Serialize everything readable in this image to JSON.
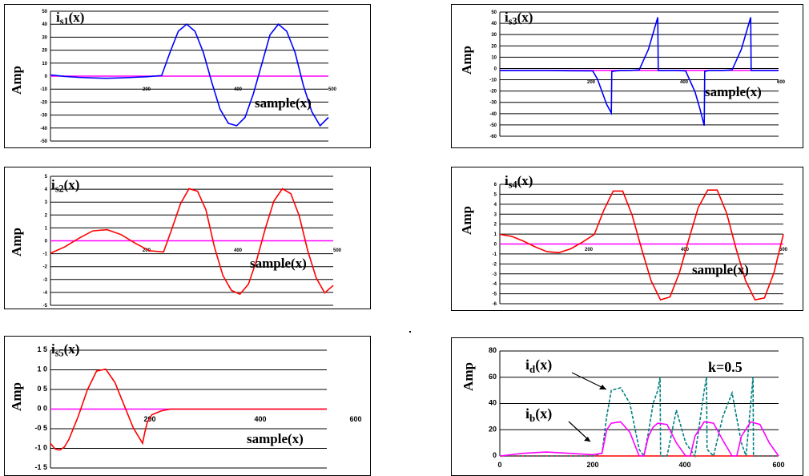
{
  "chart_data": [
    {
      "id": "is1",
      "type": "line",
      "title_main": "i",
      "title_sub": "s1",
      "title_tail": "(x)",
      "ylabel": "Amp",
      "xlabel": "sample(x)",
      "x_ticks": [
        "200",
        "400",
        "500"
      ],
      "y_ticks": [
        "50",
        "40",
        "30",
        "20",
        "10",
        "0",
        "-10",
        "-20",
        "-30",
        "-40",
        "-50"
      ],
      "ylim": [
        -55,
        55
      ],
      "xlim": [
        0,
        500
      ],
      "series": [
        {
          "color": "#0000ff",
          "x": [
            0,
            25,
            50,
            75,
            100,
            125,
            150,
            175,
            200,
            215,
            230,
            245,
            260,
            275,
            290,
            305,
            320,
            335,
            350,
            365,
            380,
            395,
            410,
            425,
            440,
            455,
            470,
            485,
            500
          ],
          "y": [
            1,
            -0.2,
            -1,
            -1.5,
            -1.8,
            -1.5,
            -1,
            -0.5,
            0.5,
            20,
            38,
            44,
            38,
            20,
            -5,
            -28,
            -40,
            -42,
            -35,
            -15,
            10,
            35,
            44,
            38,
            20,
            -8,
            -30,
            -42,
            -35
          ]
        }
      ]
    },
    {
      "id": "is3",
      "type": "line",
      "title_main": "i",
      "title_sub": "s3",
      "title_tail": "(x)",
      "ylabel": "Amp",
      "xlabel": "sample(x)",
      "x_ticks": [
        "200",
        "400",
        "600"
      ],
      "y_ticks": [
        "50",
        "40",
        "30",
        "20",
        "10",
        "0",
        "-10",
        "-20",
        "-30",
        "-40",
        "-50",
        "-60"
      ],
      "ylim": [
        -62,
        55
      ],
      "xlim": [
        0,
        600
      ],
      "series": [
        {
          "color": "#0000ff",
          "x": [
            0,
            50,
            100,
            150,
            200,
            210,
            220,
            230,
            240,
            241,
            250,
            260,
            280,
            300,
            320,
            330,
            340,
            341,
            350,
            380,
            400,
            420,
            430,
            440,
            441,
            450,
            480,
            500,
            520,
            540,
            541,
            560,
            600
          ],
          "y": [
            0,
            0,
            0,
            -0.3,
            -0.5,
            -8,
            -20,
            -32,
            -40,
            -1,
            -0.5,
            -0.2,
            0,
            0.5,
            20,
            35,
            50,
            0,
            0,
            0,
            -0.5,
            -20,
            -35,
            -52,
            -1,
            0,
            0,
            0.5,
            20,
            50,
            0,
            0,
            0
          ]
        }
      ]
    },
    {
      "id": "is2",
      "type": "line",
      "title_main": "i",
      "title_sub": "s2",
      "title_tail": "(x)",
      "ylabel": "Amp",
      "xlabel": "sample(x)",
      "x_ticks": [
        "200",
        "400",
        "500"
      ],
      "y_ticks": [
        "5",
        "4",
        "3",
        "2",
        "1",
        "0",
        "-1",
        "-2",
        "-3",
        "-4",
        "-5"
      ],
      "ylim": [
        -5.2,
        5.2
      ],
      "xlim": [
        0,
        500
      ],
      "series": [
        {
          "color": "#ff0000",
          "x": [
            0,
            25,
            50,
            75,
            100,
            125,
            150,
            175,
            200,
            215,
            230,
            245,
            260,
            275,
            290,
            305,
            320,
            335,
            350,
            365,
            380,
            395,
            410,
            425,
            440,
            455,
            470,
            485,
            500
          ],
          "y": [
            -1,
            -0.5,
            0.2,
            0.8,
            0.9,
            0.5,
            -0.2,
            -0.8,
            -0.9,
            1,
            3,
            4.2,
            4,
            2.5,
            -0.5,
            -2.8,
            -4,
            -4.3,
            -3.5,
            -1.5,
            1,
            3.2,
            4.2,
            3.8,
            2,
            -0.8,
            -3,
            -4.2,
            -3.6
          ]
        }
      ]
    },
    {
      "id": "is4",
      "type": "line",
      "title_main": "i",
      "title_sub": "s4",
      "title_tail": "(x)",
      "ylabel": "Amp",
      "xlabel": "sample(x)",
      "x_ticks": [
        "200",
        "400",
        "600"
      ],
      "y_ticks": [
        "6",
        "5",
        "4",
        "3",
        "2",
        "1",
        "0",
        "-1",
        "-2",
        "-3",
        "-4",
        "-5",
        "-6"
      ],
      "ylim": [
        -6.2,
        6.2
      ],
      "xlim": [
        0,
        600
      ],
      "series": [
        {
          "color": "#ff0000",
          "x": [
            0,
            25,
            50,
            75,
            100,
            125,
            150,
            175,
            200,
            220,
            240,
            260,
            280,
            300,
            320,
            340,
            360,
            380,
            400,
            420,
            440,
            460,
            480,
            500,
            520,
            540,
            560,
            580,
            600
          ],
          "y": [
            1,
            0.8,
            0.3,
            -0.3,
            -0.8,
            -0.9,
            -0.5,
            0.2,
            1,
            3.5,
            5.5,
            5.5,
            3,
            -0.5,
            -3.8,
            -5.8,
            -5.5,
            -3,
            0.5,
            3.8,
            5.6,
            5.6,
            3.2,
            -0.5,
            -3.8,
            -5.8,
            -5.6,
            -3,
            1
          ]
        }
      ]
    },
    {
      "id": "is5",
      "type": "line",
      "title_main": "i",
      "title_sub": "s5",
      "title_tail": "(x)",
      "ylabel": "Amp",
      "xlabel": "sample(x)",
      "x_ticks": [
        "200",
        "400",
        "600"
      ],
      "y_ticks": [
        "1 5",
        "1 0",
        "0 5",
        "0 0",
        "-0 5",
        "-1 0",
        "-1 5"
      ],
      "ylim": [
        -1.55,
        1.55
      ],
      "xlim": [
        0,
        600
      ],
      "series": [
        {
          "color": "#ff0000",
          "x": [
            0,
            10,
            20,
            30,
            40,
            60,
            80,
            100,
            120,
            140,
            160,
            180,
            200,
            205,
            210,
            220,
            240,
            260,
            280,
            300,
            350,
            400,
            450,
            500,
            550,
            600
          ],
          "y": [
            -0.9,
            -1.05,
            -1.08,
            -1,
            -0.8,
            -0.2,
            0.5,
            1.0,
            1.05,
            0.7,
            0.1,
            -0.5,
            -0.9,
            -0.6,
            -0.35,
            -0.15,
            -0.05,
            0,
            0,
            0,
            0,
            0,
            0,
            0,
            0,
            0
          ]
        }
      ]
    },
    {
      "id": "id_ib",
      "type": "line",
      "ylabel": "Amp",
      "annotation": "k=0.5",
      "label_d_main": "i",
      "label_d_sub": "d",
      "label_d_tail": "(x)",
      "label_b_main": "i",
      "label_b_sub": "b",
      "label_b_tail": "(x)",
      "x_ticks": [
        "0",
        "200",
        "400",
        "600"
      ],
      "y_ticks": [
        "80",
        "60",
        "40",
        "20",
        "0"
      ],
      "ylim": [
        0,
        80
      ],
      "xlim": [
        0,
        600
      ],
      "series": [
        {
          "name_key": "id",
          "color": "#008080",
          "x": [
            0,
            50,
            100,
            150,
            200,
            220,
            230,
            240,
            260,
            280,
            300,
            310,
            320,
            330,
            340,
            345,
            346,
            360,
            380,
            400,
            420,
            430,
            440,
            445,
            446,
            460,
            480,
            500,
            520,
            530,
            540,
            545,
            546,
            560,
            580,
            600
          ],
          "y": [
            0,
            0,
            0,
            0,
            0,
            2,
            30,
            50,
            52,
            40,
            5,
            0,
            18,
            40,
            50,
            60,
            0,
            0,
            35,
            10,
            0,
            25,
            50,
            60,
            5,
            0,
            30,
            48,
            10,
            0,
            40,
            60,
            0,
            0,
            0,
            0
          ]
        },
        {
          "name_key": "ib",
          "color": "#ff00ff",
          "x": [
            0,
            50,
            100,
            150,
            200,
            220,
            230,
            240,
            260,
            280,
            300,
            310,
            320,
            330,
            340,
            360,
            380,
            400,
            410,
            420,
            440,
            460,
            480,
            500,
            510,
            520,
            540,
            560,
            580,
            600
          ],
          "y": [
            0,
            2,
            3,
            2,
            1,
            2,
            20,
            25,
            26,
            18,
            0,
            0,
            15,
            22,
            25,
            24,
            10,
            0,
            0,
            15,
            26,
            25,
            12,
            0,
            0,
            15,
            26,
            24,
            10,
            0
          ]
        }
      ]
    }
  ]
}
